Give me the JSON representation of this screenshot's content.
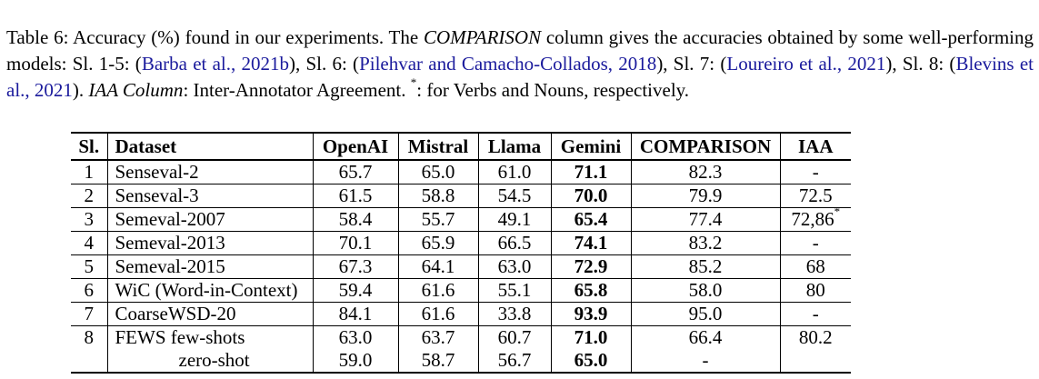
{
  "caption": {
    "p1": "Table 6: Accuracy (%) found in our experiments. The ",
    "comparison_word": "COMPARISON",
    "p2": " column gives the accuracies obtained by some well-performing models: Sl. 1-5: (",
    "cite1": "Barba et al., 2021b",
    "p3": "), Sl. 6: (",
    "cite2": "Pilehvar and Camacho-Collados, 2018",
    "p4": "), Sl. 7: (",
    "cite3": "Loureiro et al., 2021",
    "p5": "), Sl. 8: (",
    "cite4": "Blevins et al., 2021",
    "p6": "). ",
    "iaa_word": "IAA Column",
    "p7": ": Inter-Annotator Agreement. ",
    "star": "*",
    "p8": ": for Verbs and Nouns, respectively."
  },
  "table": {
    "headers": {
      "sl": "Sl.",
      "dataset": "Dataset",
      "openai": "OpenAI",
      "mistral": "Mistral",
      "llama": "Llama",
      "gemini": "Gemini",
      "comparison": "COMPARISON",
      "iaa": "IAA"
    },
    "rows": [
      {
        "sl": "1",
        "dataset": "Senseval-2",
        "openai": "65.7",
        "mistral": "65.0",
        "llama": "61.0",
        "gemini": "71.1",
        "comparison": "82.3",
        "iaa": "-"
      },
      {
        "sl": "2",
        "dataset": "Senseval-3",
        "openai": "61.5",
        "mistral": "58.8",
        "llama": "54.5",
        "gemini": "70.0",
        "comparison": "79.9",
        "iaa": "72.5"
      },
      {
        "sl": "3",
        "dataset": "Semeval-2007",
        "openai": "58.4",
        "mistral": "55.7",
        "llama": "49.1",
        "gemini": "65.4",
        "comparison": "77.4",
        "iaa": "72,86",
        "iaa_sup": "*"
      },
      {
        "sl": "4",
        "dataset": "Semeval-2013",
        "openai": "70.1",
        "mistral": "65.9",
        "llama": "66.5",
        "gemini": "74.1",
        "comparison": "83.2",
        "iaa": "-"
      },
      {
        "sl": "5",
        "dataset": "Semeval-2015",
        "openai": "67.3",
        "mistral": "64.1",
        "llama": "63.0",
        "gemini": "72.9",
        "comparison": "85.2",
        "iaa": "68"
      },
      {
        "sl": "6",
        "dataset": "WiC (Word-in-Context)",
        "openai": "59.4",
        "mistral": "61.6",
        "llama": "55.1",
        "gemini": "65.8",
        "comparison": "58.0",
        "iaa": "80"
      },
      {
        "sl": "7",
        "dataset": "CoarseWSD-20",
        "openai": "84.1",
        "mistral": "61.6",
        "llama": "33.8",
        "gemini": "93.9",
        "comparison": "95.0",
        "iaa": "-"
      },
      {
        "sl": "8",
        "dataset": "FEWS few-shots",
        "openai": "63.0",
        "mistral": "63.7",
        "llama": "60.7",
        "gemini": "71.0",
        "comparison": "66.4",
        "iaa": "80.2"
      },
      {
        "sl": "",
        "dataset": "zero-shot",
        "openai": "59.0",
        "mistral": "58.7",
        "llama": "56.7",
        "gemini": "65.0",
        "comparison": "-",
        "iaa": ""
      }
    ]
  }
}
